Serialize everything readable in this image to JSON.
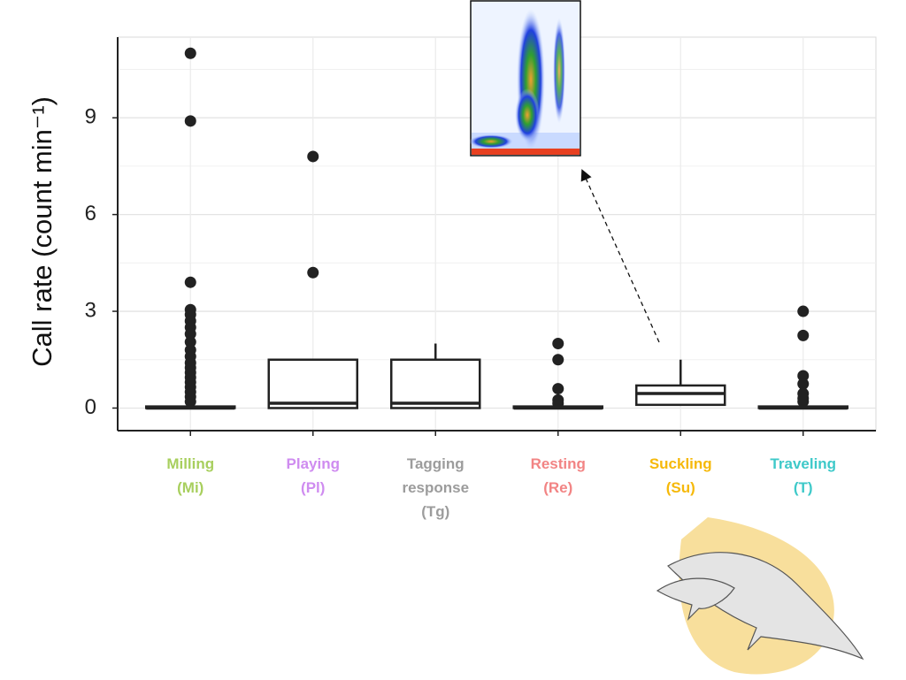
{
  "chart_data": {
    "type": "box",
    "ylabel": "Call rate (count min⁻¹)",
    "categories": [
      "Milling (Mi)",
      "Playing (Pl)",
      "Tagging response (Tg)",
      "Resting (Re)",
      "Suckling (Su)",
      "Traveling (T)"
    ],
    "category_colors": [
      "#a8cf5e",
      "#cf8cf0",
      "#9c9c9c",
      "#f28484",
      "#f6b90a",
      "#3ec9c9"
    ],
    "boxes": [
      {
        "whislo": 0,
        "q1": 0,
        "med": 0,
        "q3": 0.05,
        "whishi": 0.05,
        "fliers": [
          11,
          8.9,
          3.9,
          3.05,
          2.9,
          2.7,
          2.5,
          2.3,
          2.05,
          1.8,
          1.6,
          1.4,
          1.25,
          1.1,
          0.95,
          0.8,
          0.65,
          0.5,
          0.35,
          0.2
        ]
      },
      {
        "whislo": 0,
        "q1": 0,
        "med": 0.15,
        "q3": 1.5,
        "whishi": 1.5,
        "fliers": [
          7.8,
          4.2
        ]
      },
      {
        "whislo": 0,
        "q1": 0,
        "med": 0.15,
        "q3": 1.5,
        "whishi": 2.0,
        "fliers": []
      },
      {
        "whislo": 0,
        "q1": 0,
        "med": 0,
        "q3": 0.05,
        "whishi": 0.05,
        "fliers": [
          2.0,
          1.5,
          0.6,
          0.25,
          0.15
        ]
      },
      {
        "whislo": 0.1,
        "q1": 0.1,
        "med": 0.45,
        "q3": 0.7,
        "whishi": 1.5,
        "fliers": []
      },
      {
        "whislo": 0,
        "q1": 0,
        "med": 0,
        "q3": 0.05,
        "whishi": 0.05,
        "fliers": [
          3.0,
          2.25,
          1.0,
          0.75,
          0.45,
          0.3,
          0.2
        ]
      }
    ],
    "ylim": [
      -0.7,
      11.5
    ],
    "yticks": [
      0,
      3,
      6,
      9
    ],
    "minor_grid": [
      1.5,
      4.5,
      7.5,
      10.5
    ],
    "grid": true
  }
}
